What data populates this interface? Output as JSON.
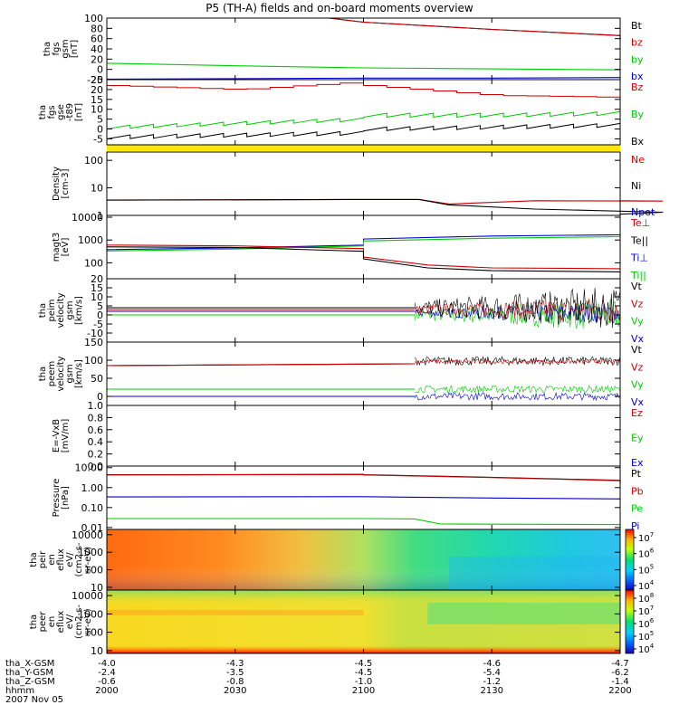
{
  "title": "P5 (TH-A) fields and on-board moments overview",
  "chart_data": [
    {
      "type": "line",
      "id": "p1",
      "ylabel": [
        "tha",
        "fgs",
        "gsm",
        "[nT]"
      ],
      "ylim": [
        -20,
        100
      ],
      "yticks": [
        -20,
        0,
        20,
        40,
        60,
        80,
        100
      ],
      "log": false,
      "legend": [
        {
          "text": "Bt",
          "color": "#000000"
        },
        {
          "text": "bz",
          "color": "#cc0000"
        },
        {
          "text": "by",
          "color": "#00cc00"
        },
        {
          "text": "bx",
          "color": "#0000cc"
        }
      ],
      "series": [
        {
          "name": "Bt",
          "color": "#000000",
          "x": [
            2052,
            2100,
            2130,
            2160,
            2200
          ],
          "values": [
            100,
            92,
            78,
            66,
            58
          ]
        },
        {
          "name": "bz",
          "color": "#cc0000",
          "x": [
            2052,
            2100,
            2130,
            2160,
            2200
          ],
          "values": [
            100,
            92,
            78,
            66,
            56
          ]
        },
        {
          "name": "by",
          "color": "#00cc00",
          "x": [
            2000,
            2030,
            2100,
            2130,
            2160,
            2200
          ],
          "values": [
            12,
            7,
            3,
            1,
            -1,
            -3
          ]
        },
        {
          "name": "bx",
          "color": "#0000cc",
          "x": [
            2000,
            2030,
            2100,
            2130,
            2200
          ],
          "values": [
            -19,
            -18,
            -17,
            -17,
            -16
          ]
        }
      ]
    },
    {
      "type": "line",
      "id": "p2",
      "ylabel": [
        "tha",
        "fgs",
        "gse",
        "-t89",
        "[nT]"
      ],
      "ylim": [
        -8,
        25
      ],
      "yticks": [
        -5,
        0,
        5,
        10,
        15,
        20,
        25
      ],
      "log": false,
      "legend": [
        {
          "text": "Bz",
          "color": "#cc0000"
        },
        {
          "text": "By",
          "color": "#00cc00"
        },
        {
          "text": "Bx",
          "color": "#000000"
        }
      ],
      "series": [
        {
          "name": "Bz",
          "color": "#cc0000",
          "x": [
            2000,
            2030,
            2060,
            2100,
            2130,
            2160,
            2200
          ],
          "values": [
            22,
            20,
            24,
            22,
            17,
            16,
            15
          ]
        },
        {
          "name": "By",
          "color": "#00cc00",
          "x": [
            2000,
            2030,
            2060,
            2100,
            2130,
            2160,
            2200
          ],
          "values": [
            2,
            4,
            6,
            8,
            8,
            9,
            10
          ]
        },
        {
          "name": "Bx",
          "color": "#000000",
          "x": [
            2000,
            2030,
            2060,
            2100,
            2130,
            2160,
            2200
          ],
          "values": [
            -3,
            -2,
            -1,
            1,
            2,
            3,
            4
          ]
        }
      ]
    },
    {
      "type": "line",
      "id": "p3",
      "ylabel": [
        "Density",
        "[cm-3]"
      ],
      "ylim": [
        1,
        200
      ],
      "yticks": [
        1,
        10,
        100
      ],
      "ytick_labels": [
        "1",
        "10",
        "100"
      ],
      "log": true,
      "legend": [
        {
          "text": "Ne",
          "color": "#cc0000"
        },
        {
          "text": "Ni",
          "color": "#000000"
        },
        {
          "text": "Npot",
          "color": "#0000cc"
        }
      ],
      "series": [
        {
          "name": "Ne",
          "color": "#cc0000",
          "x": [
            2000,
            2060,
            2113,
            2120,
            2140,
            2170,
            2200
          ],
          "values": [
            3.6,
            3.8,
            3.8,
            2.6,
            3.4,
            3.3,
            3.4
          ]
        },
        {
          "name": "Ni",
          "color": "#000000",
          "x": [
            2000,
            2060,
            2113,
            2120,
            2140,
            2170,
            2200
          ],
          "values": [
            3.6,
            3.8,
            3.8,
            2.4,
            1.7,
            1.3,
            1.1
          ]
        }
      ]
    },
    {
      "type": "line",
      "id": "p4",
      "ylabel": [
        "magt3",
        "[eV]"
      ],
      "ylim": [
        20,
        12000
      ],
      "yticks": [
        100,
        1000,
        10000
      ],
      "ytick_labels": [
        "100",
        "1000",
        "10000"
      ],
      "log": true,
      "legend": [
        {
          "text": "Te⊥",
          "color": "#cc0000"
        },
        {
          "text": "Te||",
          "color": "#000000"
        },
        {
          "text": "Ti⊥",
          "color": "#0000cc"
        },
        {
          "text": "Ti||",
          "color": "#00cc00"
        }
      ],
      "series": [
        {
          "name": "Ti⊥",
          "color": "#0000cc",
          "x": [
            2000,
            2030,
            2060,
            2100,
            2130,
            2160,
            2200
          ],
          "values": [
            380,
            450,
            600,
            1100,
            1500,
            1700,
            1900
          ]
        },
        {
          "name": "Ti||",
          "color": "#00cc00",
          "x": [
            2000,
            2030,
            2060,
            2100,
            2130,
            2160,
            2200
          ],
          "values": [
            330,
            400,
            550,
            900,
            1200,
            1400,
            1600
          ]
        },
        {
          "name": "Te⊥",
          "color": "#cc0000",
          "x": [
            2000,
            2030,
            2060,
            2100,
            2115,
            2130,
            2160,
            2200
          ],
          "values": [
            600,
            550,
            420,
            180,
            80,
            60,
            55,
            55
          ]
        },
        {
          "name": "Te||",
          "color": "#000000",
          "x": [
            2000,
            2030,
            2060,
            2100,
            2115,
            2130,
            2160,
            2200
          ],
          "values": [
            500,
            470,
            320,
            150,
            60,
            45,
            40,
            42
          ]
        }
      ]
    },
    {
      "type": "line",
      "id": "p5",
      "ylabel": [
        "tha",
        "peim",
        "velocity",
        "gsm",
        "[km/s]"
      ],
      "ylim": [
        -15,
        20
      ],
      "yticks": [
        -10,
        -5,
        0,
        5,
        10,
        15,
        20
      ],
      "log": false,
      "legend": [
        {
          "text": "Vt",
          "color": "#000000"
        },
        {
          "text": "Vz",
          "color": "#cc0000"
        },
        {
          "text": "Vy",
          "color": "#00cc00"
        },
        {
          "text": "Vx",
          "color": "#0000cc"
        }
      ],
      "series": [
        {
          "name": "Vt",
          "color": "#000000",
          "x": [
            2000,
            2112
          ],
          "values": [
            4,
            4
          ]
        },
        {
          "name": "Vz",
          "color": "#cc0000",
          "x": [
            2000,
            2112
          ],
          "values": [
            3,
            3
          ]
        },
        {
          "name": "Vx",
          "color": "#0000cc",
          "x": [
            2000,
            2112
          ],
          "values": [
            2,
            2
          ]
        },
        {
          "name": "Vy",
          "color": "#00cc00",
          "x": [
            2000,
            2112
          ],
          "values": [
            0,
            0
          ]
        }
      ]
    },
    {
      "type": "line",
      "id": "p6",
      "ylabel": [
        "tha",
        "peem",
        "velocity",
        "gsm",
        "[km/s]"
      ],
      "ylim": [
        -25,
        150
      ],
      "yticks": [
        0,
        50,
        100,
        150
      ],
      "log": false,
      "legend": [
        {
          "text": "Vt",
          "color": "#000000"
        },
        {
          "text": "Vz",
          "color": "#cc0000"
        },
        {
          "text": "Vy",
          "color": "#00cc00"
        },
        {
          "text": "Vx",
          "color": "#0000cc"
        }
      ],
      "series": [
        {
          "name": "Vt",
          "color": "#000000",
          "x": [
            2000,
            2112
          ],
          "values": [
            85,
            90
          ]
        },
        {
          "name": "Vz",
          "color": "#cc0000",
          "x": [
            2000,
            2112
          ],
          "values": [
            85,
            90
          ]
        },
        {
          "name": "Vy",
          "color": "#00cc00",
          "x": [
            2000,
            2112
          ],
          "values": [
            20,
            20
          ]
        },
        {
          "name": "Vx",
          "color": "#0000cc",
          "x": [
            2000,
            2112
          ],
          "values": [
            0,
            0
          ]
        }
      ]
    },
    {
      "type": "line",
      "id": "p7",
      "ylabel": [
        "E=-VxB",
        "[mV/m]"
      ],
      "ylim": [
        0,
        1
      ],
      "yticks": [
        0,
        0.2,
        0.4,
        0.6,
        0.8,
        1.0
      ],
      "ytick_labels": [
        "0.0",
        "0.2",
        "0.4",
        "0.6",
        "0.8",
        "1.0"
      ],
      "log": false,
      "legend": [
        {
          "text": "Ez",
          "color": "#cc0000"
        },
        {
          "text": "Ey",
          "color": "#00cc00"
        },
        {
          "text": "Ex",
          "color": "#0000cc"
        }
      ],
      "series": []
    },
    {
      "type": "line",
      "id": "p8",
      "ylabel": [
        "Pressure",
        "[nPa]"
      ],
      "ylim": [
        0.008,
        12
      ],
      "yticks": [
        0.01,
        0.1,
        1,
        10
      ],
      "ytick_labels": [
        "0.01",
        "0.10",
        "1.00",
        "10.00"
      ],
      "log": true,
      "legend": [
        {
          "text": "Pt",
          "color": "#000000"
        },
        {
          "text": "Pb",
          "color": "#cc0000"
        },
        {
          "text": "Pe",
          "color": "#00cc00"
        },
        {
          "text": "Pi",
          "color": "#0000cc"
        }
      ],
      "series": [
        {
          "name": "Pt",
          "color": "#000000",
          "x": [
            2000,
            2060,
            2100,
            2130,
            2160,
            2200
          ],
          "values": [
            4.4,
            4.6,
            4.4,
            3.3,
            2.3,
            1.7
          ]
        },
        {
          "name": "Pb",
          "color": "#cc0000",
          "x": [
            2000,
            2060,
            2100,
            2130,
            2160,
            2200
          ],
          "values": [
            4.3,
            4.5,
            4.3,
            3.2,
            2.2,
            1.6
          ]
        },
        {
          "name": "Pi",
          "color": "#0000cc",
          "x": [
            2000,
            2060,
            2112,
            2130,
            2160,
            2200
          ],
          "values": [
            0.34,
            0.35,
            0.33,
            0.3,
            0.27,
            0.25
          ]
        },
        {
          "name": "Pe",
          "color": "#00cc00",
          "x": [
            2000,
            2060,
            2112,
            2118,
            2160,
            2200
          ],
          "values": [
            0.028,
            0.028,
            0.027,
            0.015,
            0.014,
            0.014
          ]
        }
      ]
    },
    {
      "type": "heatmap",
      "id": "p9",
      "ylabel": [
        "tha",
        "peir",
        "en",
        "eflux",
        "eV/",
        "(cm2-s-",
        "sr-eV)"
      ],
      "ylim": [
        7,
        20000
      ],
      "yticks": [
        10,
        100,
        1000,
        10000
      ],
      "ytick_labels": [
        "10",
        "100",
        "1000",
        "10000"
      ],
      "log": true,
      "colorbar": {
        "ticks": [
          {
            "text": "10",
            "exp": "7"
          },
          {
            "text": "10",
            "exp": "6"
          },
          {
            "text": "10",
            "exp": "5"
          },
          {
            "text": "10",
            "exp": "4"
          }
        ],
        "range": [
          "10^3.5",
          "10^7.5"
        ]
      }
    },
    {
      "type": "heatmap",
      "id": "p10",
      "ylabel": [
        "tha",
        "peer",
        "en",
        "eflux",
        "eV/",
        "(cm2-s-",
        "sr-eV)"
      ],
      "ylim": [
        7,
        20000
      ],
      "yticks": [
        10,
        100,
        1000,
        10000
      ],
      "ytick_labels": [
        "10",
        "100",
        "1000",
        "10000"
      ],
      "log": true,
      "colorbar": {
        "ticks": [
          {
            "text": "10",
            "exp": "8"
          },
          {
            "text": "10",
            "exp": "7"
          },
          {
            "text": "10",
            "exp": "6"
          },
          {
            "text": "10",
            "exp": "5"
          },
          {
            "text": "10",
            "exp": "4"
          }
        ],
        "range": [
          "10^3.5",
          "10^8"
        ]
      }
    }
  ],
  "xaxis": {
    "minutes": [
      2000,
      2030,
      2100,
      2130,
      2200
    ],
    "rows": [
      {
        "label": "tha_X-GSM",
        "values": [
          "-4.0",
          "-4.3",
          "-4.5",
          "-4.6",
          "-4.7"
        ]
      },
      {
        "label": "tha_Y-GSM",
        "values": [
          "-2.4",
          "-3.5",
          "-4.5",
          "-5.4",
          "-6.2"
        ]
      },
      {
        "label": "tha_Z-GSM",
        "values": [
          "-0.6",
          "-0.8",
          "-1.0",
          "-1.2",
          "-1.4"
        ]
      },
      {
        "label": "hhmm",
        "values": [
          "2000",
          "2030",
          "2100",
          "2130",
          "2200"
        ]
      }
    ],
    "date": "2007 Nov 05"
  }
}
